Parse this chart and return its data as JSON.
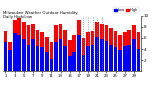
{
  "title": "Milwaukee Weather Outdoor Humidity",
  "subtitle": "Daily High/Low",
  "background_color": "#ffffff",
  "high_color": "#ff0000",
  "low_color": "#0000ff",
  "legend_high": "High",
  "legend_low": "Low",
  "days": [
    1,
    2,
    3,
    4,
    5,
    6,
    7,
    8,
    9,
    10,
    11,
    12,
    13,
    14,
    15,
    16,
    17,
    18,
    19,
    20,
    21,
    22,
    23,
    24,
    25,
    26,
    27,
    28,
    29,
    30
  ],
  "high_values": [
    72,
    52,
    93,
    95,
    88,
    83,
    85,
    75,
    70,
    62,
    52,
    83,
    85,
    75,
    57,
    65,
    93,
    60,
    70,
    73,
    88,
    85,
    83,
    78,
    73,
    65,
    70,
    75,
    83,
    70
  ],
  "low_values": [
    52,
    38,
    68,
    65,
    58,
    48,
    58,
    45,
    43,
    35,
    22,
    52,
    58,
    45,
    28,
    35,
    65,
    30,
    45,
    48,
    62,
    58,
    55,
    48,
    43,
    38,
    45,
    48,
    58,
    40
  ],
  "ylim": [
    0,
    100
  ],
  "yticks": [
    20,
    40,
    60,
    80,
    100
  ],
  "ytick_labels": [
    "2",
    "4",
    "6",
    "8",
    "10"
  ],
  "bar_width": 0.8,
  "dotted_lines": [
    18,
    19,
    20,
    21,
    22
  ],
  "xtick_every": 2
}
